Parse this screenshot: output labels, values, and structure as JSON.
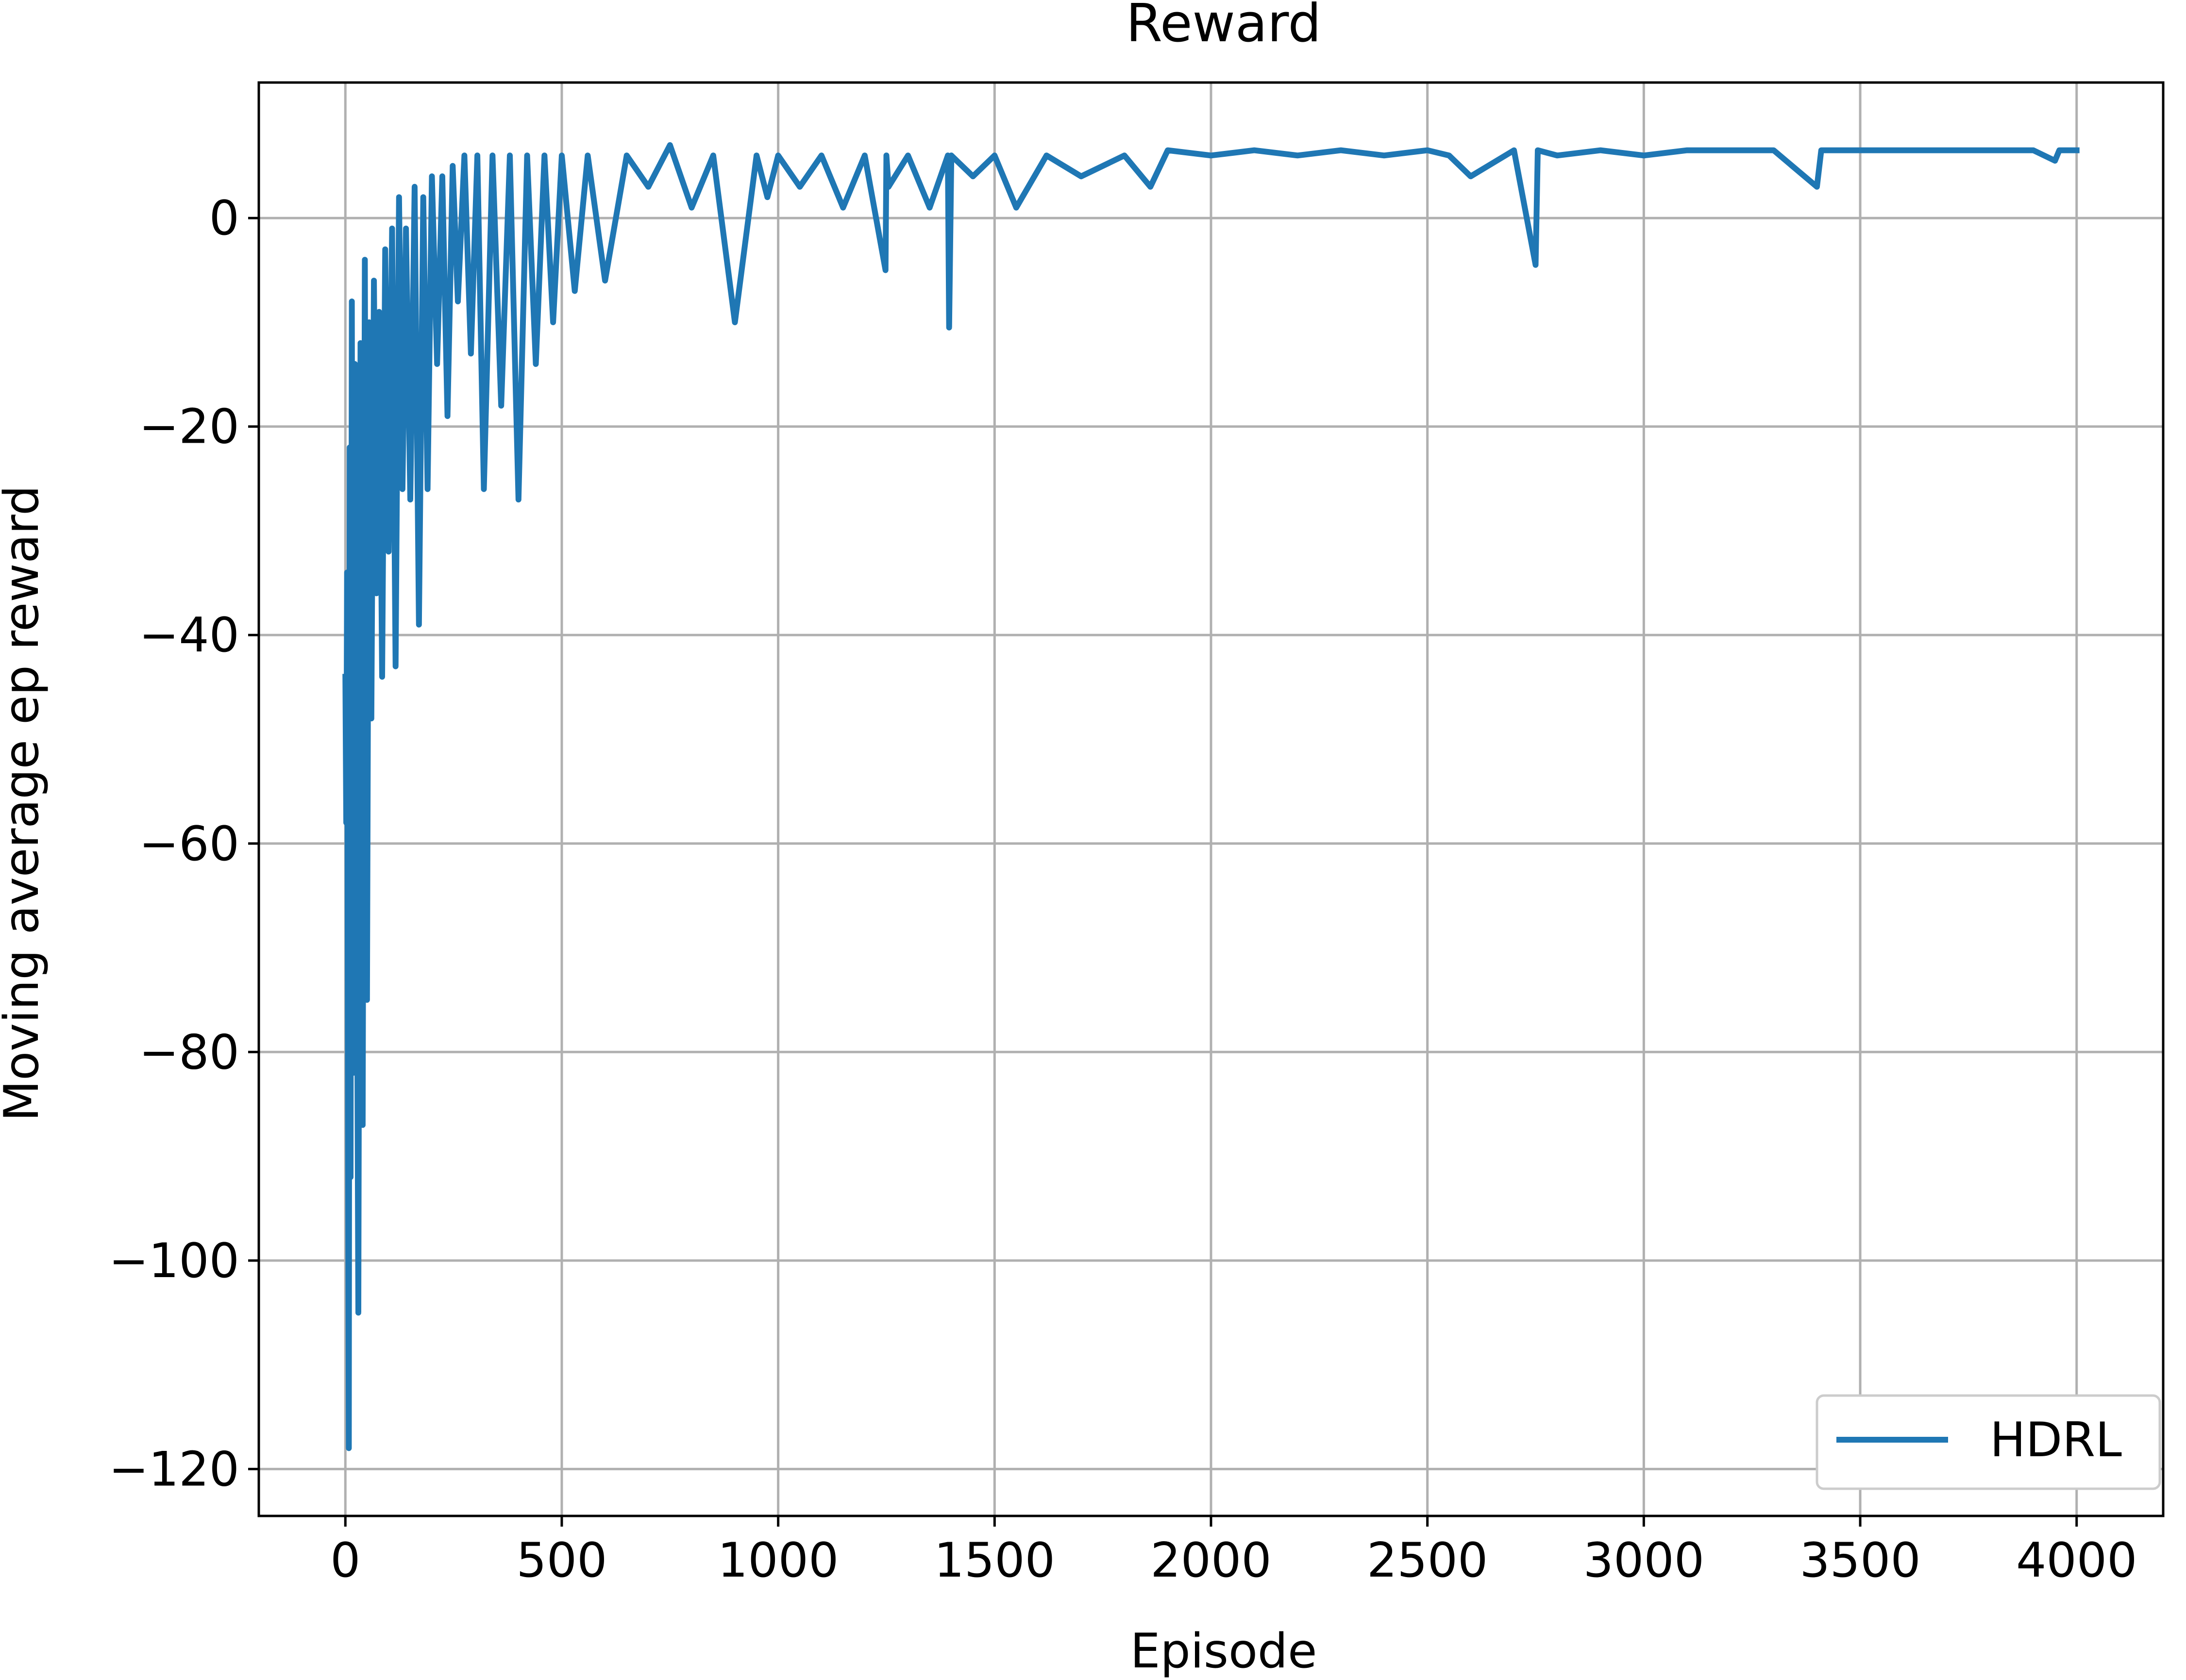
{
  "chart_data": {
    "type": "line",
    "title": "Reward",
    "xlabel": "Episode",
    "ylabel": "Moving average ep reward",
    "xlim": [
      -200,
      4200
    ],
    "ylim": [
      -124.5,
      13
    ],
    "x_ticks": [
      0,
      500,
      1000,
      1500,
      2000,
      2500,
      3000,
      3500,
      4000
    ],
    "y_ticks": [
      0,
      -20,
      -40,
      -60,
      -80,
      -100,
      -120
    ],
    "x_tick_labels": [
      "0",
      "500",
      "1000",
      "1500",
      "2000",
      "2500",
      "3000",
      "3500",
      "4000"
    ],
    "y_tick_labels": [
      "0",
      "−20",
      "−40",
      "−60",
      "−80",
      "−100",
      "−120"
    ],
    "grid": true,
    "legend": {
      "position": "lower-right",
      "entries": [
        "HDRL"
      ]
    },
    "colors": {
      "series": "#1f77b4",
      "grid": "#b0b0b0",
      "axes": "#000000",
      "legend_border": "#cccccc"
    },
    "series": [
      {
        "name": "HDRL",
        "x": [
          0,
          2,
          4,
          6,
          8,
          10,
          12,
          15,
          18,
          22,
          26,
          30,
          35,
          40,
          45,
          50,
          55,
          60,
          66,
          72,
          78,
          85,
          92,
          100,
          108,
          116,
          124,
          132,
          140,
          150,
          160,
          170,
          180,
          190,
          200,
          212,
          224,
          236,
          248,
          260,
          275,
          290,
          305,
          320,
          340,
          360,
          380,
          400,
          420,
          440,
          460,
          480,
          500,
          530,
          560,
          600,
          650,
          700,
          750,
          800,
          850,
          900,
          950,
          975,
          1000,
          1050,
          1100,
          1150,
          1200,
          1248,
          1250,
          1255,
          1300,
          1350,
          1392,
          1395,
          1400,
          1450,
          1500,
          1550,
          1620,
          1700,
          1800,
          1860,
          1900,
          2000,
          2100,
          2200,
          2300,
          2400,
          2500,
          2550,
          2600,
          2700,
          2750,
          2755,
          2800,
          2900,
          3000,
          3100,
          3200,
          3300,
          3400,
          3410,
          3500,
          3600,
          3700,
          3800,
          3900,
          3950,
          3960,
          4000
        ],
        "y": [
          -44,
          -58,
          -34,
          -86,
          -118,
          -22,
          -92,
          -8,
          -82,
          -14,
          -60,
          -105,
          -12,
          -87,
          -4,
          -75,
          -10,
          -48,
          -6,
          -36,
          -9,
          -44,
          -3,
          -32,
          -1,
          -43,
          2,
          -26,
          -1,
          -27,
          3,
          -39,
          2,
          -26,
          4,
          -14,
          4,
          -19,
          5,
          -8,
          6,
          -13,
          6,
          -26,
          6,
          -18,
          6,
          -27,
          6,
          -14,
          6,
          -10,
          6,
          -7,
          6,
          -6,
          6,
          3,
          7,
          1,
          6,
          -10,
          6,
          2,
          6,
          3,
          6,
          1,
          6,
          -5,
          6,
          3,
          6,
          1,
          6,
          -10.5,
          6,
          4,
          6,
          1,
          6,
          4,
          6,
          3,
          6.5,
          6,
          6.5,
          6,
          6.5,
          6,
          6.5,
          6,
          4,
          6.5,
          -4.5,
          6.5,
          6,
          6.5,
          6,
          6.5,
          6.5,
          6.5,
          3,
          6.5,
          6.5,
          6.5,
          6.5,
          6.5,
          6.5,
          5.5,
          6.5,
          6.5
        ]
      }
    ]
  }
}
